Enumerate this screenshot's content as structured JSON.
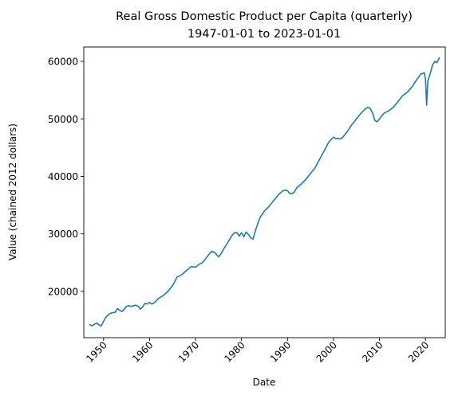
{
  "chart_data": {
    "type": "line",
    "title": "Real Gross Domestic Product per Capita (quarterly)",
    "subtitle": "1947-01-01 to 2023-01-01",
    "xlabel": "Date",
    "ylabel": "Value (chained 2012 dollars)",
    "xlim": [
      1945.7,
      2024.3
    ],
    "ylim": [
      11950,
      62500
    ],
    "x_ticks": [
      1950,
      1960,
      1970,
      1980,
      1990,
      2000,
      2010,
      2020
    ],
    "x_tick_labels": [
      "1950",
      "1960",
      "1970",
      "1980",
      "1990",
      "2000",
      "2010",
      "2020"
    ],
    "y_ticks": [
      20000,
      30000,
      40000,
      50000,
      60000
    ],
    "y_tick_labels": [
      "20000",
      "30000",
      "40000",
      "50000",
      "60000"
    ],
    "grid": false,
    "line_color": "#1f77b4",
    "series": [
      {
        "x": [
          1947.0,
          1947.5,
          1948.0,
          1948.5,
          1949.0,
          1949.5,
          1950.0,
          1950.5,
          1951.0,
          1951.5,
          1952.0,
          1952.5,
          1953.0,
          1953.5,
          1954.0,
          1954.5,
          1955.0,
          1955.5,
          1956.0,
          1956.5,
          1957.0,
          1957.5,
          1958.0,
          1958.5,
          1959.0,
          1959.5,
          1960.0,
          1960.5,
          1961.0,
          1961.5,
          1962.0,
          1963.0,
          1964.0,
          1965.0,
          1966.0,
          1967.0,
          1968.0,
          1969.0,
          1970.0,
          1970.75,
          1971.5,
          1972.5,
          1973.5,
          1974.0,
          1974.5,
          1975.0,
          1975.5,
          1976.0,
          1977.0,
          1978.0,
          1978.5,
          1979.0,
          1979.5,
          1980.0,
          1980.5,
          1981.0,
          1981.5,
          1982.0,
          1982.5,
          1983.0,
          1983.5,
          1984.0,
          1985.0,
          1986.0,
          1987.0,
          1988.0,
          1989.0,
          1989.5,
          1990.0,
          1990.5,
          1991.0,
          1991.5,
          1992.0,
          1993.0,
          1994.0,
          1995.0,
          1996.0,
          1997.0,
          1998.0,
          1999.0,
          2000.0,
          2000.5,
          2001.0,
          2001.5,
          2002.0,
          2003.0,
          2004.0,
          2005.0,
          2006.0,
          2007.0,
          2007.5,
          2008.0,
          2008.5,
          2009.0,
          2009.5,
          2010.0,
          2011.0,
          2012.0,
          2013.0,
          2014.0,
          2015.0,
          2016.0,
          2017.0,
          2018.0,
          2019.0,
          2019.75,
          2020.0,
          2020.25,
          2020.5,
          2021.0,
          2021.5,
          2022.0,
          2022.5,
          2023.0
        ],
        "y": [
          14200,
          14000,
          14300,
          14500,
          14200,
          14000,
          14800,
          15500,
          15900,
          16200,
          16300,
          16350,
          17000,
          16700,
          16500,
          16900,
          17400,
          17500,
          17400,
          17500,
          17600,
          17400,
          16900,
          17300,
          17900,
          17800,
          18100,
          17800,
          18000,
          18400,
          18800,
          19300,
          20000,
          21000,
          22500,
          22900,
          23600,
          24300,
          24200,
          24700,
          25000,
          26000,
          27000,
          26800,
          26500,
          26000,
          26500,
          27200,
          28500,
          29800,
          30200,
          30200,
          29600,
          30200,
          29500,
          30300,
          29900,
          29300,
          29100,
          30500,
          31700,
          32800,
          34000,
          34800,
          35800,
          36800,
          37500,
          37600,
          37500,
          37000,
          37000,
          37300,
          38000,
          38700,
          39500,
          40500,
          41500,
          43000,
          44500,
          46000,
          46800,
          46600,
          46600,
          46500,
          46800,
          47800,
          49000,
          50000,
          51000,
          51800,
          52000,
          51800,
          51000,
          49700,
          49500,
          50000,
          51000,
          51400,
          52000,
          53000,
          54000,
          54600,
          55500,
          56700,
          57800,
          58000,
          56800,
          52400,
          56600,
          57800,
          59300,
          60000,
          59800,
          60600
        ]
      }
    ]
  }
}
